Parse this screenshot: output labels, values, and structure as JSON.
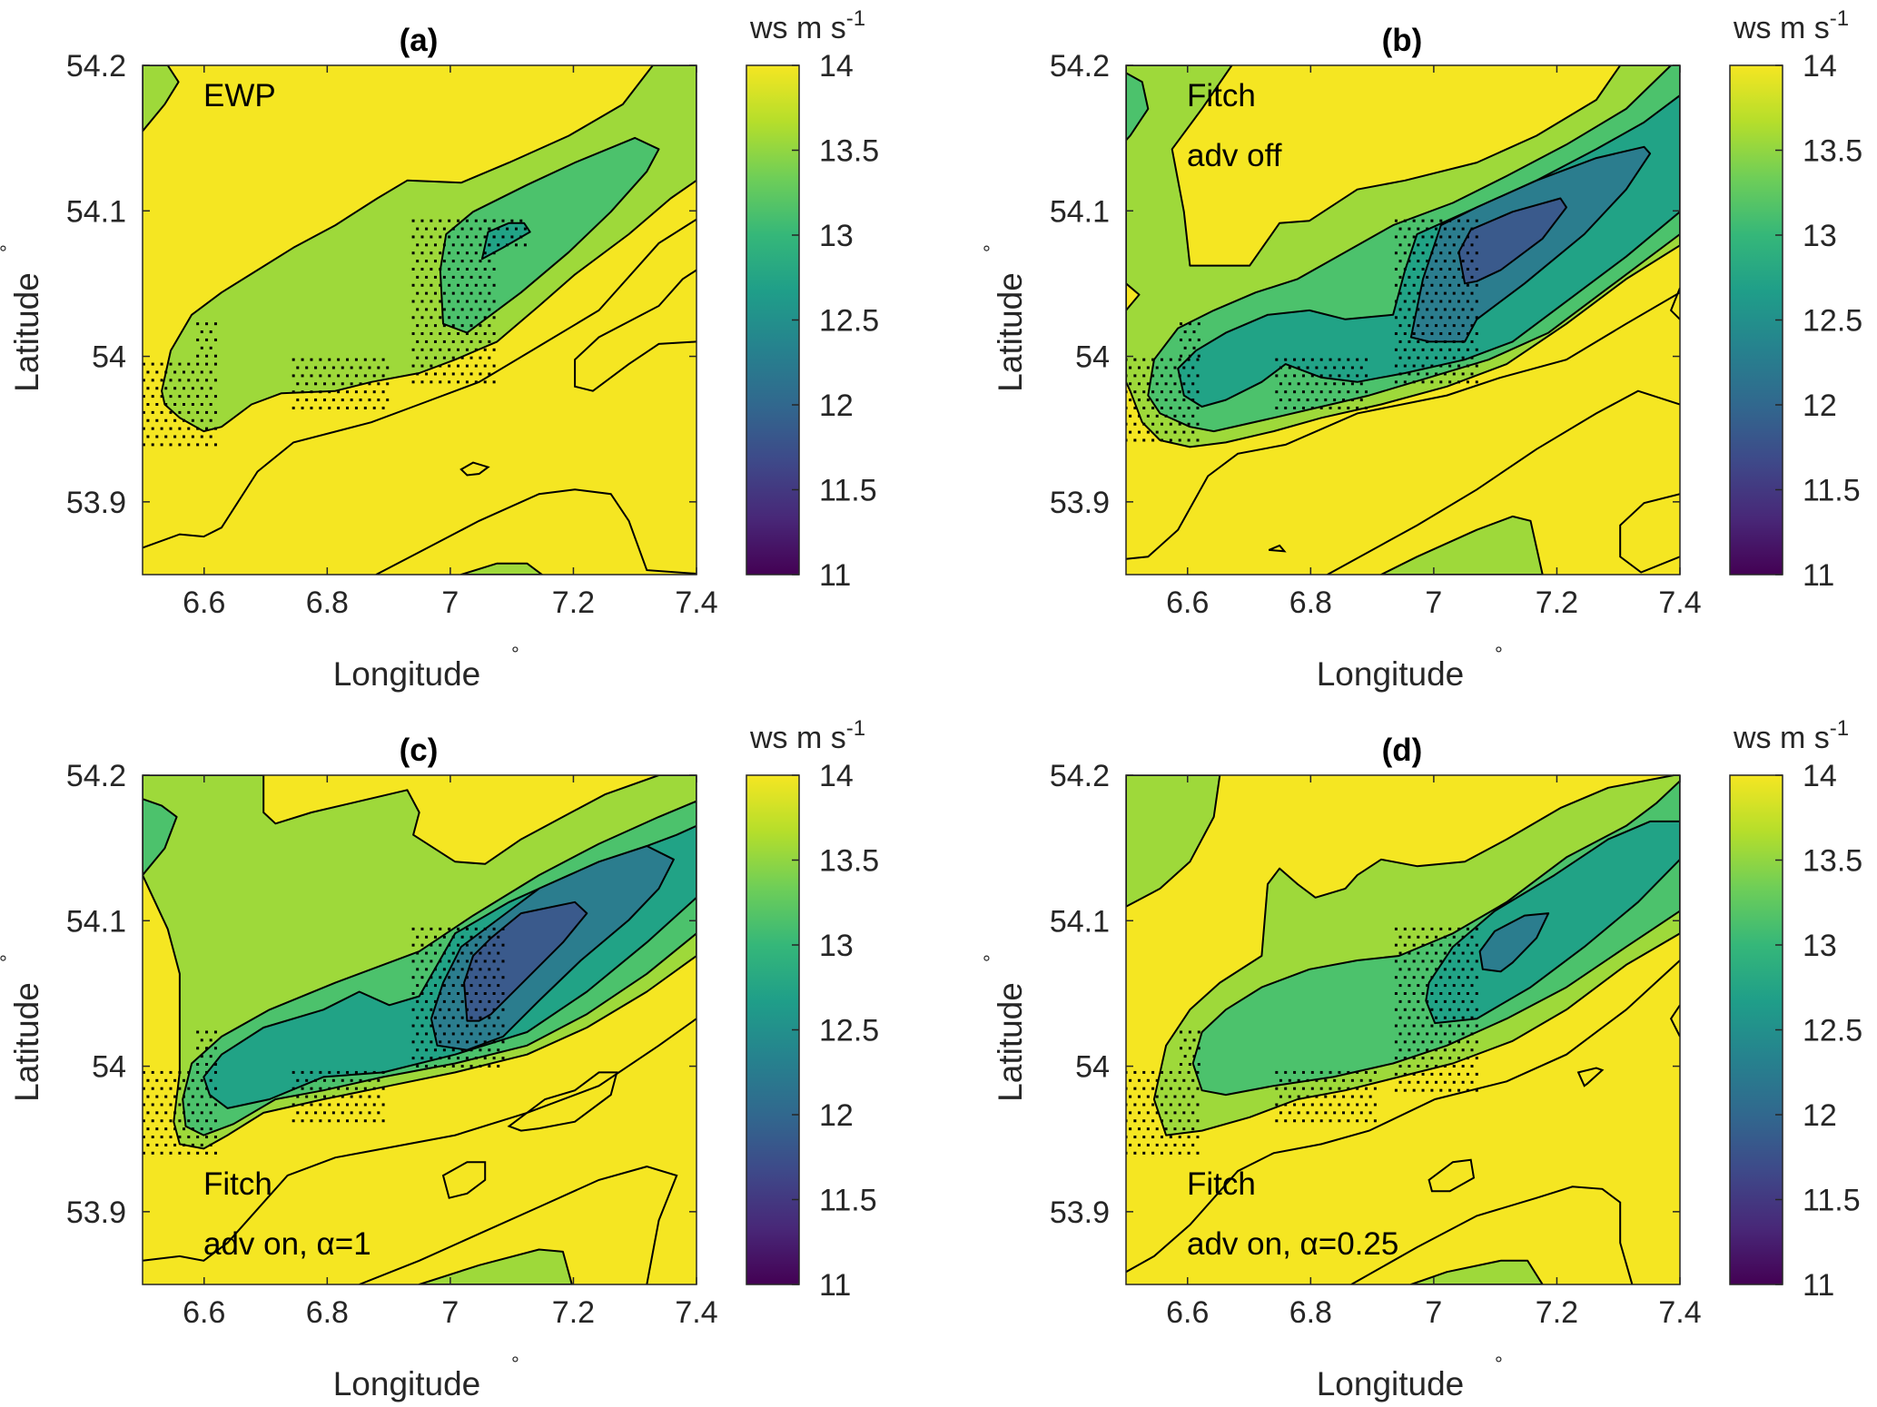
{
  "figure": {
    "colors": {
      "background": "#ffffff",
      "contour_line": "#000000",
      "stipple": "#000000"
    }
  },
  "chart_data": [
    {
      "type": "contour",
      "panel": "a",
      "title": "(a)",
      "annotation": [
        "EWP"
      ],
      "xlabel": "Longitude",
      "ylabel": "Latitude",
      "unit_symbol": "°",
      "xlim": [
        6.5,
        7.4
      ],
      "ylim": [
        53.85,
        54.2
      ],
      "xticks": [
        6.6,
        6.8,
        7,
        7.2,
        7.4
      ],
      "xtick_labels": [
        "6.6",
        "6.8",
        "7",
        "7.2",
        "7.4"
      ],
      "yticks": [
        53.9,
        54.0,
        54.1,
        54.2
      ],
      "ytick_labels": [
        "53.9",
        "54",
        "54.1",
        "54.2"
      ],
      "colorbar": {
        "label": "ws m s",
        "label_sup": "-1",
        "min": 11,
        "max": 14,
        "ticks": [
          11,
          11.5,
          12,
          12.5,
          13,
          13.5,
          14
        ],
        "tick_labels": [
          "11",
          "11.5",
          "12",
          "12.5",
          "13",
          "13.5",
          "14"
        ]
      },
      "min_level_shown": 12.5
    },
    {
      "type": "contour",
      "panel": "b",
      "title": "(b)",
      "annotation": [
        "Fitch",
        "adv off"
      ],
      "xlabel": "Longitude",
      "ylabel": "Latitude",
      "unit_symbol": "°",
      "xlim": [
        6.5,
        7.4
      ],
      "ylim": [
        53.85,
        54.2
      ],
      "xticks": [
        6.6,
        6.8,
        7,
        7.2,
        7.4
      ],
      "xtick_labels": [
        "6.6",
        "6.8",
        "7",
        "7.2",
        "7.4"
      ],
      "yticks": [
        53.9,
        54.0,
        54.1,
        54.2
      ],
      "ytick_labels": [
        "53.9",
        "54",
        "54.1",
        "54.2"
      ],
      "colorbar": {
        "label": "ws m s",
        "label_sup": "-1",
        "min": 11,
        "max": 14,
        "ticks": [
          11,
          11.5,
          12,
          12.5,
          13,
          13.5,
          14
        ],
        "tick_labels": [
          "11",
          "11.5",
          "12",
          "12.5",
          "13",
          "13.5",
          "14"
        ]
      },
      "min_level_shown": 11.5
    },
    {
      "type": "contour",
      "panel": "c",
      "title": "(c)",
      "annotation": [
        "Fitch",
        "adv on, α=1"
      ],
      "xlabel": "Longitude",
      "ylabel": "Latitude",
      "unit_symbol": "°",
      "xlim": [
        6.5,
        7.4
      ],
      "ylim": [
        53.85,
        54.2
      ],
      "xticks": [
        6.6,
        6.8,
        7,
        7.2,
        7.4
      ],
      "xtick_labels": [
        "6.6",
        "6.8",
        "7",
        "7.2",
        "7.4"
      ],
      "yticks": [
        53.9,
        54.0,
        54.1,
        54.2
      ],
      "ytick_labels": [
        "53.9",
        "54",
        "54.1",
        "54.2"
      ],
      "colorbar": {
        "label": "ws m s",
        "label_sup": "-1",
        "min": 11,
        "max": 14,
        "ticks": [
          11,
          11.5,
          12,
          12.5,
          13,
          13.5,
          14
        ],
        "tick_labels": [
          "11",
          "11.5",
          "12",
          "12.5",
          "13",
          "13.5",
          "14"
        ]
      },
      "min_level_shown": 11.5
    },
    {
      "type": "contour",
      "panel": "d",
      "title": "(d)",
      "annotation": [
        "Fitch",
        "adv on, α=0.25"
      ],
      "xlabel": "Longitude",
      "ylabel": "Latitude",
      "unit_symbol": "°",
      "xlim": [
        6.5,
        7.4
      ],
      "ylim": [
        53.85,
        54.2
      ],
      "xticks": [
        6.6,
        6.8,
        7,
        7.2,
        7.4
      ],
      "xtick_labels": [
        "6.6",
        "6.8",
        "7",
        "7.2",
        "7.4"
      ],
      "yticks": [
        53.9,
        54.0,
        54.1,
        54.2
      ],
      "ytick_labels": [
        "53.9",
        "54",
        "54.1",
        "54.2"
      ],
      "colorbar": {
        "label": "ws m s",
        "label_sup": "-1",
        "min": 11,
        "max": 14,
        "ticks": [
          11,
          11.5,
          12,
          12.5,
          13,
          13.5,
          14
        ],
        "tick_labels": [
          "11",
          "11.5",
          "12",
          "12.5",
          "13",
          "13.5",
          "14"
        ]
      },
      "min_level_shown": 12.0
    }
  ],
  "contour_levels": [
    {
      "range": "≥14",
      "color": "#f5e622"
    },
    {
      "range": "13.5–14",
      "color": "#9ed93a"
    },
    {
      "range": "13–13.5",
      "color": "#4cc26c"
    },
    {
      "range": "12.5–13",
      "color": "#21a386"
    },
    {
      "range": "12–12.5",
      "color": "#2b7d8e"
    },
    {
      "range": "11.5–12",
      "color": "#3a5a8c"
    }
  ],
  "colormap": [
    "#440154",
    "#482878",
    "#3e4989",
    "#31688e",
    "#26828e",
    "#1f9e89",
    "#35b779",
    "#6ece58",
    "#b5de2b",
    "#f5e622"
  ]
}
